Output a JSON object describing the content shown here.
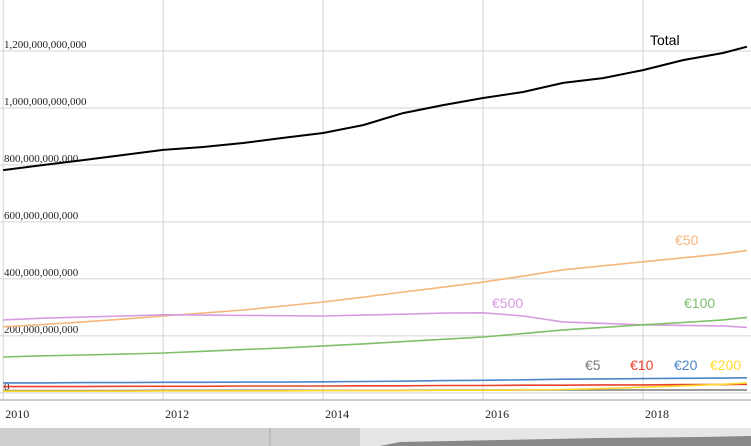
{
  "chart_data": {
    "type": "line",
    "x": [
      2010,
      2010.5,
      2011,
      2011.5,
      2012,
      2012.5,
      2013,
      2013.5,
      2014,
      2014.5,
      2015,
      2015.5,
      2016,
      2016.5,
      2017,
      2017.5,
      2018,
      2018.5,
      2019,
      2019.3
    ],
    "series": [
      {
        "name": "Total",
        "color": "#000000",
        "values": [
          782000000000,
          800000000000,
          817000000000,
          835000000000,
          853000000000,
          863000000000,
          877000000000,
          895000000000,
          912000000000,
          940000000000,
          982000000000,
          1010000000000,
          1035000000000,
          1056000000000,
          1088000000000,
          1105000000000,
          1133000000000,
          1168000000000,
          1193000000000,
          1215000000000
        ]
      },
      {
        "name": "€50",
        "color": "#f5b679",
        "values": [
          232000000000,
          240000000000,
          249000000000,
          259000000000,
          270000000000,
          280000000000,
          291000000000,
          305000000000,
          319000000000,
          336000000000,
          354000000000,
          371000000000,
          389000000000,
          410000000000,
          432000000000,
          446000000000,
          460000000000,
          474000000000,
          488000000000,
          500000000000
        ]
      },
      {
        "name": "€500",
        "color": "#d79be0",
        "values": [
          256000000000,
          262000000000,
          266000000000,
          270000000000,
          274000000000,
          273000000000,
          272000000000,
          271000000000,
          270000000000,
          273000000000,
          276000000000,
          280000000000,
          281000000000,
          270000000000,
          249000000000,
          244000000000,
          239000000000,
          237000000000,
          235000000000,
          230000000000
        ]
      },
      {
        "name": "€100",
        "color": "#7fbf6a",
        "values": [
          126000000000,
          130000000000,
          133000000000,
          136000000000,
          140000000000,
          146000000000,
          152000000000,
          158000000000,
          165000000000,
          172000000000,
          180000000000,
          188000000000,
          196000000000,
          208000000000,
          221000000000,
          230000000000,
          239000000000,
          247000000000,
          256000000000,
          265000000000
        ]
      },
      {
        "name": "€5",
        "color": "#7a7a7a",
        "values": [
          8000000000,
          8000000000,
          8000000000,
          8000000000,
          9000000000,
          9000000000,
          9000000000,
          9000000000,
          9000000000,
          9000000000,
          9000000000,
          10000000000,
          10000000000,
          10000000000,
          10000000000,
          10000000000,
          10000000000,
          10000000000,
          10000000000,
          10000000000
        ]
      },
      {
        "name": "€10",
        "color": "#e8412c",
        "values": [
          22000000000,
          22000000000,
          22000000000,
          23000000000,
          23000000000,
          23000000000,
          24000000000,
          24000000000,
          24000000000,
          25000000000,
          25000000000,
          26000000000,
          26000000000,
          27000000000,
          27000000000,
          28000000000,
          28000000000,
          29000000000,
          29000000000,
          30000000000
        ]
      },
      {
        "name": "€20",
        "color": "#4a86c8",
        "values": [
          35000000000,
          35000000000,
          36000000000,
          36000000000,
          37000000000,
          37000000000,
          38000000000,
          38000000000,
          39000000000,
          40000000000,
          41000000000,
          43000000000,
          44000000000,
          46000000000,
          48000000000,
          49000000000,
          50000000000,
          51000000000,
          52000000000,
          53000000000
        ]
      },
      {
        "name": "€200",
        "color": "#ffd92e",
        "values": [
          6000000000,
          6000000000,
          6000000000,
          6000000000,
          7000000000,
          7000000000,
          7000000000,
          7000000000,
          8000000000,
          8000000000,
          8000000000,
          9000000000,
          9000000000,
          10000000000,
          12000000000,
          15000000000,
          20000000000,
          25000000000,
          30000000000,
          35000000000
        ]
      }
    ],
    "xlim": [
      2009.96,
      2019.35
    ],
    "xticks": [
      2010,
      2012,
      2014,
      2016,
      2018
    ],
    "ylim": [
      -25000000000,
      1379000000000
    ],
    "yticks": [
      0,
      {
        "value": 200000000000,
        "label": "200,000,000,000"
      },
      {
        "value": 400000000000,
        "label": "400,000,000,000"
      },
      {
        "value": 600000000000,
        "label": "600,000,000,000"
      },
      {
        "value": 800000000000,
        "label": "800,000,000,000"
      },
      {
        "value": 1000000000000,
        "label": "1,000,000,000,000"
      },
      {
        "value": 1200000000000,
        "label": "1,200,000,000,000"
      }
    ],
    "grid": true
  }
}
